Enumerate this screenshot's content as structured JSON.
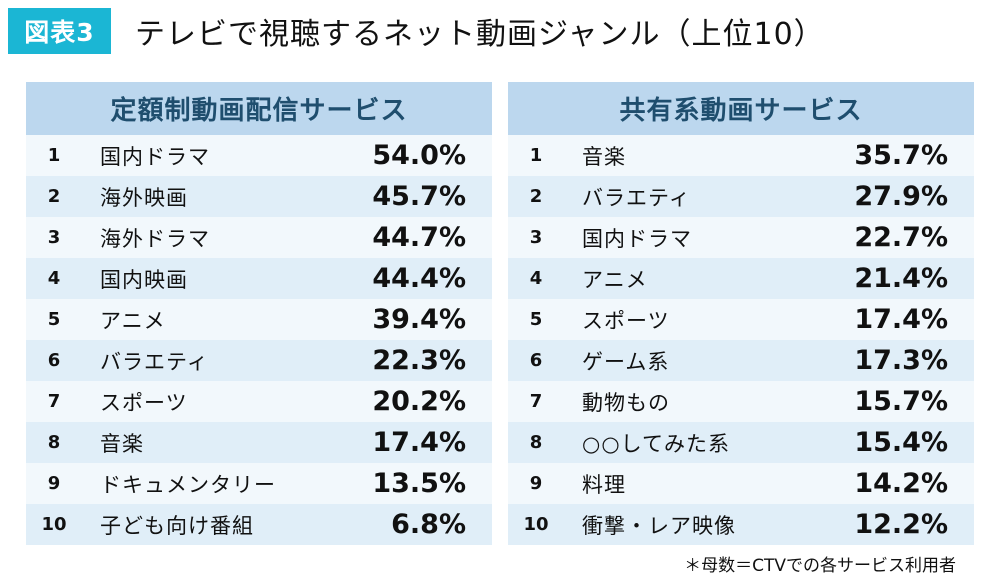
{
  "header": {
    "badge": "図表3",
    "title": "テレビで視聴するネット動画ジャンル（上位10）"
  },
  "note": "＊母数＝CTVでの各サービス利用者",
  "colors": {
    "badge": "#1bb6d4",
    "table_header": "#bcd7ee",
    "header_text": "#1f4e6e",
    "row_light": "#f2f8fc",
    "row_dark": "#e0eef8"
  },
  "chart_data": {
    "type": "table",
    "title": "テレビで視聴するネット動画ジャンル（上位10）",
    "tables": [
      {
        "name": "定額制動画配信サービス",
        "rows": [
          {
            "rank": "1",
            "genre": "国内ドラマ",
            "value": "54.0%"
          },
          {
            "rank": "2",
            "genre": "海外映画",
            "value": "45.7%"
          },
          {
            "rank": "3",
            "genre": "海外ドラマ",
            "value": "44.7%"
          },
          {
            "rank": "4",
            "genre": "国内映画",
            "value": "44.4%"
          },
          {
            "rank": "5",
            "genre": "アニメ",
            "value": "39.4%"
          },
          {
            "rank": "6",
            "genre": "バラエティ",
            "value": "22.3%"
          },
          {
            "rank": "7",
            "genre": "スポーツ",
            "value": "20.2%"
          },
          {
            "rank": "8",
            "genre": "音楽",
            "value": "17.4%"
          },
          {
            "rank": "9",
            "genre": "ドキュメンタリー",
            "value": "13.5%"
          },
          {
            "rank": "10",
            "genre": "子ども向け番組",
            "value": "6.8%"
          }
        ]
      },
      {
        "name": "共有系動画サービス",
        "rows": [
          {
            "rank": "1",
            "genre": "音楽",
            "value": "35.7%"
          },
          {
            "rank": "2",
            "genre": "バラエティ",
            "value": "27.9%"
          },
          {
            "rank": "3",
            "genre": "国内ドラマ",
            "value": "22.7%"
          },
          {
            "rank": "4",
            "genre": "アニメ",
            "value": "21.4%"
          },
          {
            "rank": "5",
            "genre": "スポーツ",
            "value": "17.4%"
          },
          {
            "rank": "6",
            "genre": "ゲーム系",
            "value": "17.3%"
          },
          {
            "rank": "7",
            "genre": "動物もの",
            "value": "15.7%"
          },
          {
            "rank": "8",
            "genre": "○○してみた系",
            "value": "15.4%"
          },
          {
            "rank": "9",
            "genre": "料理",
            "value": "14.2%"
          },
          {
            "rank": "10",
            "genre": "衝撃・レア映像",
            "value": "12.2%"
          }
        ]
      }
    ]
  }
}
